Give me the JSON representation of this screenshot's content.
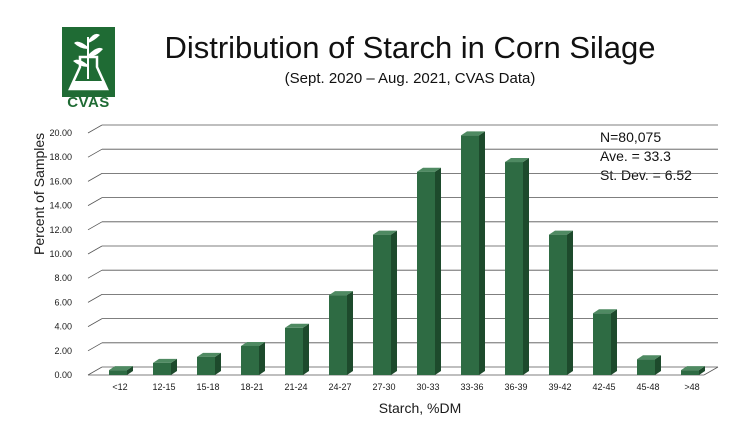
{
  "logo": {
    "text": "CVAS",
    "color": "#1f6b34"
  },
  "header": {
    "title": "Distribution of Starch in Corn Silage",
    "subtitle": "(Sept. 2020 – Aug. 2021, CVAS Data)"
  },
  "stats": {
    "n": "N=80,075",
    "ave": "Ave. = 33.3",
    "sd": "St. Dev. = 6.52"
  },
  "chart_data": {
    "type": "bar",
    "title": "Distribution of Starch in Corn Silage",
    "subtitle": "(Sept. 2020 – Aug. 2021, CVAS Data)",
    "xlabel": "Starch, %DM",
    "ylabel": "Percent of Samples",
    "ylim": [
      0,
      20
    ],
    "yticks": [
      "0.00",
      "2.00",
      "4.00",
      "6.00",
      "8.00",
      "10.00",
      "12.00",
      "14.00",
      "16.00",
      "18.00",
      "20.00"
    ],
    "categories": [
      "<12",
      "12-15",
      "15-18",
      "18-21",
      "21-24",
      "24-27",
      "27-30",
      "30-33",
      "33-36",
      "36-39",
      "39-42",
      "42-45",
      "45-48",
      ">48"
    ],
    "values": [
      0.4,
      1.0,
      1.5,
      2.4,
      3.9,
      6.6,
      11.6,
      16.8,
      19.8,
      17.6,
      11.6,
      5.1,
      1.3,
      0.4
    ],
    "grid": true,
    "bar_color": "#2e6b43",
    "style": "3d"
  }
}
